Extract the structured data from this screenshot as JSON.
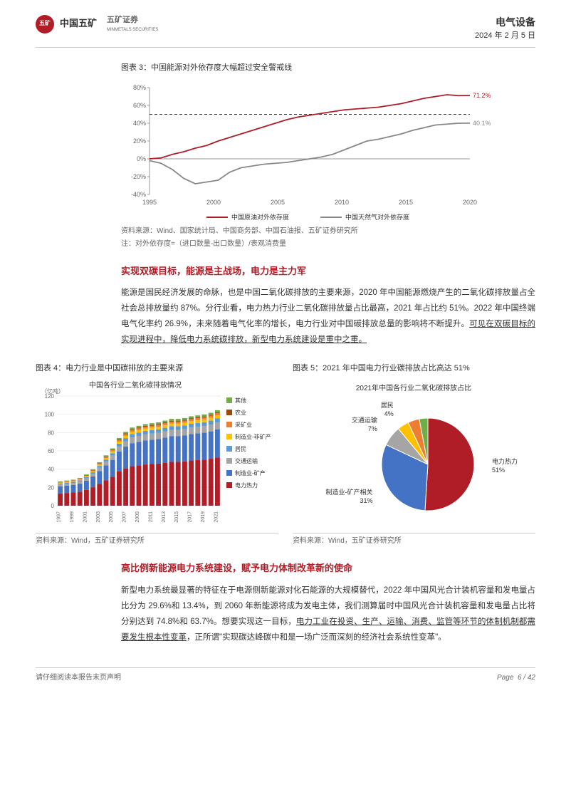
{
  "header": {
    "logo_cn": "中国五矿",
    "logo_sec": "五矿证券",
    "logo_en": "MINMETALS SECURITIES",
    "category": "电气设备",
    "date": "2024 年 2 月 5 日"
  },
  "chart3": {
    "title": "图表 3：中国能源对外依存度大幅超过安全警戒线",
    "source": "资料来源：Wind、国家统计局、中国商务部、中国石油报、五矿证券研究所",
    "note": "注：对外依存度=（进口数量-出口数量）/表观消费量",
    "type": "line",
    "legend": [
      "中国原油对外依存度",
      "中国天然气对外依存度"
    ],
    "legend_colors": [
      "#b01d26",
      "#888888"
    ],
    "x_ticks": [
      "1995",
      "2000",
      "2005",
      "2010",
      "2015",
      "2020"
    ],
    "y_ticks": [
      "-40%",
      "-20%",
      "0%",
      "20%",
      "40%",
      "60%",
      "80%"
    ],
    "ylim": [
      -40,
      80
    ],
    "warning_line": 50,
    "end_labels": [
      "71.2%",
      "40.1%"
    ],
    "end_label_colors": [
      "#b01d26",
      "#888888"
    ],
    "background_color": "#ffffff",
    "grid_color": "#d0d0d0",
    "series_oil": [
      0,
      1,
      5,
      8,
      12,
      15,
      20,
      24,
      28,
      32,
      36,
      40,
      44,
      47,
      49,
      51,
      53,
      55,
      56,
      57,
      58,
      60,
      62,
      65,
      68,
      70,
      72,
      71,
      71.2
    ],
    "series_gas": [
      -2,
      -5,
      -12,
      -22,
      -28,
      -26,
      -24,
      -15,
      -10,
      -8,
      -6,
      -5,
      -4,
      -2,
      0,
      2,
      5,
      10,
      15,
      20,
      22,
      25,
      28,
      32,
      35,
      38,
      39,
      40,
      40.1
    ],
    "line_width": 1.8
  },
  "section1": {
    "title": "实现双碳目标，能源是主战场，电力是主力军",
    "para": "能源是国民经济发展的命脉，也是中国二氧化碳排放的主要来源，2020 年中国能源燃烧产生的二氧化碳排放量占全社会总排放量约 87%。分行业看，电力热力行业二氧化碳排放量占比最高，2021 年占比约 51%。2022 年中国终端电气化率约 26.9%，未来随着电气化率的增长，电力行业对中国碳排放总量的影响将不断提升。",
    "para_underline": "可见在双碳目标的实现进程中，降低电力系统碳排放，新型电力系统建设是重中之重。"
  },
  "chart4": {
    "title": "图表 4：电力行业是中国碳排放的主要来源",
    "subtitle": "中国各行业二氧化碳排放情况",
    "source": "资料来源：Wind，五矿证券研究所",
    "type": "stacked_bar",
    "y_label": "（亿吨）",
    "y_ticks": [
      0,
      20,
      40,
      60,
      80,
      100,
      120
    ],
    "x_ticks": [
      "1997",
      "1999",
      "2001",
      "2003",
      "2005",
      "2007",
      "2009",
      "2011",
      "2013",
      "2015",
      "2017",
      "2019",
      "2021"
    ],
    "legend": [
      "其他",
      "农业",
      "采矿业",
      "制造业-非矿产",
      "居民",
      "交通运输",
      "制造业-矿产",
      "电力热力"
    ],
    "colors": [
      "#70ad47",
      "#9e480e",
      "#ed7d31",
      "#ffc000",
      "#5b9bd5",
      "#a5a5a5",
      "#4472c4",
      "#b01d26"
    ],
    "totals": [
      28,
      29,
      30,
      32,
      36,
      42,
      50,
      58,
      66,
      78,
      85,
      90,
      92,
      94,
      95,
      96,
      98,
      100,
      100,
      101,
      103,
      104,
      105,
      107,
      110
    ],
    "power_share": 0.48
  },
  "chart5": {
    "title": "图表 5：2021 年中国电力行业碳排放占比高达 51%",
    "subtitle": "2021年中国各行业二氧化碳排放占比",
    "source": "资料来源：Wind，五矿证券研究所",
    "type": "pie",
    "slices": [
      {
        "label": "电力热力",
        "value": 51,
        "color": "#b01d26"
      },
      {
        "label": "制造业-矿产相关",
        "value": 31,
        "color": "#4472c4"
      },
      {
        "label": "交通运输",
        "value": 7,
        "color": "#a5a5a5"
      },
      {
        "label": "居民",
        "value": 4,
        "color": "#ffc000"
      },
      {
        "label": "",
        "value": 4,
        "color": "#ed7d31"
      },
      {
        "label": "",
        "value": 3,
        "color": "#70ad47"
      }
    ]
  },
  "section2": {
    "title": "高比例新能源电力系统建设，赋予电力体制改革新的使命",
    "para_a": "新型电力系统最显著的特征在于电源侧新能源对化石能源的大规模替代，2022 年中国风光合计装机容量和发电量占比分为 29.6%和 13.4%，到 2060 年新能源将成为发电主体，我们测算届时中国风光合计装机容量和发电量占比将分别达到 74.8%和 63.7%。想要实现这一目标，",
    "para_underline": "电力工业在投资、生产、运输、消费、监管等环节的体制机制都需要发生根本性变革",
    "para_b": "，正所谓\"实现碳达峰碳中和是一场广泛而深刻的经济社会系统性变革\"。"
  },
  "footer": {
    "left": "请仔细阅读本报告末页声明",
    "right_label": "Page",
    "right_page": "6 / 42"
  }
}
